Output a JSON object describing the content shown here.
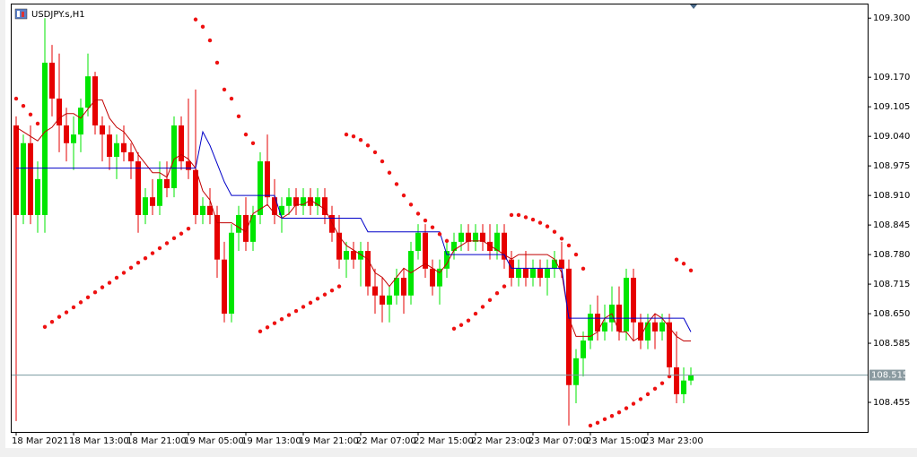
{
  "chart_data": {
    "type": "candlestick",
    "title": "USDJPY.s,H1",
    "categories": [
      "18 Mar 2021",
      null,
      null,
      null,
      null,
      null,
      null,
      null,
      "18 Mar 13:00",
      null,
      null,
      null,
      null,
      null,
      null,
      null,
      "18 Mar 21:00",
      null,
      null,
      null,
      null,
      null,
      null,
      null,
      "19 Mar 05:00",
      null,
      null,
      null,
      null,
      null,
      null,
      null,
      "19 Mar 13:00",
      null,
      null,
      null,
      null,
      null,
      null,
      null,
      "19 Mar 21:00",
      null,
      null,
      null,
      null,
      null,
      null,
      null,
      "22 Mar 07:00",
      null,
      null,
      null,
      null,
      null,
      null,
      null,
      "22 Mar 15:00",
      null,
      null,
      null,
      null,
      null,
      null,
      null,
      "22 Mar 23:00",
      null,
      null,
      null,
      null,
      null,
      null,
      null,
      "23 Mar 07:00",
      null,
      null,
      null,
      null,
      null,
      null,
      null,
      "23 Mar 15:00",
      null,
      null,
      null,
      null,
      null,
      null,
      null,
      "23 Mar 23:00",
      null,
      null,
      null,
      null,
      null,
      null
    ],
    "open": [
      109.064,
      108.867,
      109.025,
      108.867,
      108.867,
      109.202,
      109.123,
      109.064,
      109.025,
      109.044,
      109.103,
      109.172,
      109.064,
      109.044,
      108.995,
      109.025,
      109.005,
      108.985,
      108.867,
      108.906,
      108.887,
      108.946,
      108.926,
      109.064,
      108.985,
      108.966,
      108.867,
      108.887,
      108.867,
      108.769,
      108.65,
      108.828,
      108.867,
      108.808,
      108.867,
      108.985,
      108.906,
      108.867,
      108.887,
      108.906,
      108.887,
      108.906,
      108.887,
      108.906,
      108.867,
      108.828,
      108.769,
      108.788,
      108.769,
      108.788,
      108.71,
      108.69,
      108.67,
      108.69,
      108.729,
      108.69,
      108.788,
      108.828,
      108.749,
      108.71,
      108.749,
      108.788,
      108.808,
      108.828,
      108.808,
      108.828,
      108.808,
      108.788,
      108.828,
      108.769,
      108.729,
      108.749,
      108.729,
      108.749,
      108.729,
      108.749,
      108.769,
      108.749,
      108.493,
      108.552,
      108.591,
      108.65,
      108.611,
      108.631,
      108.67,
      108.611,
      108.729,
      108.631,
      108.591,
      108.631,
      108.611,
      108.631,
      108.532,
      108.473,
      108.503
    ],
    "high": [
      109.084,
      109.044,
      109.064,
      108.985,
      109.3,
      109.241,
      109.222,
      109.103,
      109.084,
      109.123,
      109.222,
      109.182,
      109.084,
      109.064,
      109.044,
      109.064,
      109.025,
      109.005,
      108.926,
      108.946,
      108.985,
      108.985,
      109.084,
      109.084,
      109.123,
      109.143,
      108.906,
      108.926,
      108.887,
      108.808,
      108.847,
      108.887,
      108.906,
      108.887,
      109.005,
      109.044,
      108.946,
      108.906,
      108.926,
      108.926,
      108.926,
      108.926,
      108.926,
      108.926,
      108.887,
      108.867,
      108.808,
      108.808,
      108.808,
      108.808,
      108.749,
      108.729,
      108.71,
      108.749,
      108.749,
      108.808,
      108.847,
      108.847,
      108.769,
      108.769,
      108.808,
      108.828,
      108.847,
      108.847,
      108.847,
      108.847,
      108.847,
      108.847,
      108.847,
      108.788,
      108.769,
      108.788,
      108.769,
      108.769,
      108.769,
      108.788,
      108.808,
      108.769,
      108.572,
      108.611,
      108.67,
      108.69,
      108.67,
      108.71,
      108.71,
      108.749,
      108.749,
      108.65,
      108.65,
      108.65,
      108.65,
      108.65,
      108.611,
      108.532,
      108.532
    ],
    "low": [
      108.414,
      108.847,
      108.847,
      108.828,
      108.828,
      109.084,
      109.005,
      108.985,
      108.966,
      109.005,
      109.084,
      109.044,
      108.985,
      108.966,
      108.946,
      108.985,
      108.946,
      108.828,
      108.847,
      108.867,
      108.867,
      108.906,
      108.906,
      108.966,
      108.946,
      108.847,
      108.847,
      108.847,
      108.729,
      108.631,
      108.631,
      108.788,
      108.788,
      108.788,
      108.847,
      108.887,
      108.847,
      108.828,
      108.867,
      108.867,
      108.867,
      108.867,
      108.867,
      108.847,
      108.808,
      108.749,
      108.729,
      108.749,
      108.71,
      108.69,
      108.65,
      108.631,
      108.631,
      108.67,
      108.65,
      108.67,
      108.769,
      108.729,
      108.69,
      108.67,
      108.729,
      108.769,
      108.788,
      108.788,
      108.788,
      108.788,
      108.769,
      108.769,
      108.749,
      108.71,
      108.71,
      108.71,
      108.71,
      108.71,
      108.69,
      108.729,
      108.729,
      108.404,
      108.453,
      108.512,
      108.572,
      108.591,
      108.591,
      108.611,
      108.591,
      108.591,
      108.591,
      108.572,
      108.572,
      108.572,
      108.591,
      108.512,
      108.453,
      108.453,
      108.493
    ],
    "close": [
      108.867,
      109.025,
      108.867,
      108.946,
      109.202,
      109.123,
      109.064,
      109.025,
      109.044,
      109.103,
      109.172,
      109.064,
      109.044,
      108.995,
      109.025,
      109.005,
      108.985,
      108.867,
      108.906,
      108.887,
      108.946,
      108.926,
      109.064,
      108.985,
      108.966,
      108.867,
      108.887,
      108.867,
      108.769,
      108.65,
      108.828,
      108.867,
      108.808,
      108.867,
      108.985,
      108.906,
      108.867,
      108.887,
      108.906,
      108.887,
      108.906,
      108.887,
      108.906,
      108.867,
      108.828,
      108.769,
      108.788,
      108.769,
      108.788,
      108.71,
      108.69,
      108.67,
      108.69,
      108.729,
      108.69,
      108.788,
      108.828,
      108.749,
      108.71,
      108.749,
      108.788,
      108.808,
      108.828,
      108.808,
      108.828,
      108.808,
      108.788,
      108.828,
      108.769,
      108.729,
      108.749,
      108.729,
      108.749,
      108.729,
      108.749,
      108.769,
      108.749,
      108.493,
      108.552,
      108.591,
      108.65,
      108.611,
      108.631,
      108.67,
      108.611,
      108.729,
      108.631,
      108.591,
      108.631,
      108.611,
      108.631,
      108.532,
      108.473,
      108.503,
      108.515
    ],
    "up_color": "#00e600",
    "down_color": "#e60000",
    "lines": [
      {
        "color": "#c00000",
        "values": [
          109.06,
          109.05,
          109.04,
          109.03,
          109.05,
          109.06,
          109.08,
          109.09,
          109.09,
          109.08,
          109.1,
          109.12,
          109.12,
          109.08,
          109.06,
          109.05,
          109.03,
          109.0,
          108.98,
          108.96,
          108.96,
          108.95,
          108.99,
          109.0,
          108.99,
          108.97,
          108.92,
          108.9,
          108.85,
          108.85,
          108.85,
          108.84,
          108.83,
          108.87,
          108.88,
          108.89,
          108.87,
          108.86,
          108.87,
          108.89,
          108.89,
          108.9,
          108.89,
          108.88,
          108.85,
          108.82,
          108.8,
          108.79,
          108.78,
          108.77,
          108.74,
          108.73,
          108.71,
          108.73,
          108.75,
          108.74,
          108.75,
          108.76,
          108.75,
          108.74,
          108.76,
          108.79,
          108.8,
          108.81,
          108.81,
          108.81,
          108.8,
          108.79,
          108.78,
          108.77,
          108.78,
          108.78,
          108.78,
          108.78,
          108.78,
          108.77,
          108.74,
          108.64,
          108.6,
          108.6,
          108.6,
          108.61,
          108.64,
          108.65,
          108.61,
          108.61,
          108.59,
          108.6,
          108.63,
          108.65,
          108.64,
          108.62,
          108.6,
          108.59,
          108.59
        ]
      },
      {
        "color": "#0000c8",
        "values": [
          108.97,
          108.97,
          108.97,
          108.97,
          108.97,
          108.97,
          108.97,
          108.97,
          108.97,
          108.97,
          108.97,
          108.97,
          108.97,
          108.97,
          108.97,
          108.97,
          108.97,
          108.97,
          108.97,
          108.97,
          108.97,
          108.97,
          108.97,
          108.97,
          108.97,
          108.97,
          109.05,
          109.02,
          108.98,
          108.94,
          108.91,
          108.91,
          108.91,
          108.91,
          108.91,
          108.91,
          108.91,
          108.86,
          108.86,
          108.86,
          108.86,
          108.86,
          108.86,
          108.86,
          108.86,
          108.86,
          108.86,
          108.86,
          108.86,
          108.83,
          108.83,
          108.83,
          108.83,
          108.83,
          108.83,
          108.83,
          108.83,
          108.83,
          108.83,
          108.83,
          108.78,
          108.78,
          108.78,
          108.78,
          108.78,
          108.78,
          108.78,
          108.78,
          108.78,
          108.75,
          108.75,
          108.75,
          108.75,
          108.75,
          108.75,
          108.75,
          108.75,
          108.64,
          108.64,
          108.64,
          108.64,
          108.64,
          108.64,
          108.64,
          108.64,
          108.64,
          108.64,
          108.64,
          108.64,
          108.64,
          108.64,
          108.64,
          108.64,
          108.64,
          108.61
        ]
      }
    ],
    "sar": {
      "color": "#ee1111",
      "values": [
        109.123,
        109.107,
        109.088,
        109.068,
        108.621,
        108.632,
        108.643,
        108.653,
        108.664,
        108.675,
        108.686,
        108.697,
        108.708,
        108.718,
        108.729,
        108.74,
        108.751,
        108.762,
        108.772,
        108.783,
        108.794,
        108.805,
        108.816,
        108.826,
        108.837,
        109.297,
        109.281,
        109.251,
        109.202,
        109.143,
        109.123,
        109.084,
        109.044,
        109.025,
        108.611,
        108.62,
        108.629,
        108.638,
        108.647,
        108.656,
        108.665,
        108.674,
        108.683,
        108.692,
        108.701,
        108.71,
        109.044,
        109.04,
        109.032,
        109.02,
        109.005,
        108.985,
        108.96,
        108.935,
        108.91,
        108.89,
        108.87,
        108.855,
        108.84,
        108.825,
        108.81,
        108.617,
        108.625,
        108.635,
        108.65,
        108.665,
        108.68,
        108.695,
        108.71,
        108.867,
        108.867,
        108.862,
        108.857,
        108.85,
        108.842,
        108.83,
        108.815,
        108.8,
        108.78,
        108.749,
        108.404,
        108.41,
        108.418,
        108.425,
        108.433,
        108.442,
        108.452,
        108.462,
        108.473,
        108.485,
        108.497,
        108.512,
        108.769,
        108.76,
        108.745
      ]
    },
    "ylim": [
      108.39,
      109.33
    ],
    "yticks": [
      {
        "value": 109.3,
        "label": "109.300"
      },
      {
        "value": 109.17,
        "label": "109.170"
      },
      {
        "value": 109.105,
        "label": "109.105"
      },
      {
        "value": 109.04,
        "label": "109.040"
      },
      {
        "value": 108.975,
        "label": "108.975"
      },
      {
        "value": 108.91,
        "label": "108.910"
      },
      {
        "value": 108.845,
        "label": "108.845"
      },
      {
        "value": 108.78,
        "label": "108.780"
      },
      {
        "value": 108.715,
        "label": "108.715"
      },
      {
        "value": 108.65,
        "label": "108.650"
      },
      {
        "value": 108.585,
        "label": "108.585"
      },
      {
        "value": 108.455,
        "label": "108.455"
      }
    ],
    "current_price": {
      "value": 108.515,
      "label": "108.515"
    }
  }
}
